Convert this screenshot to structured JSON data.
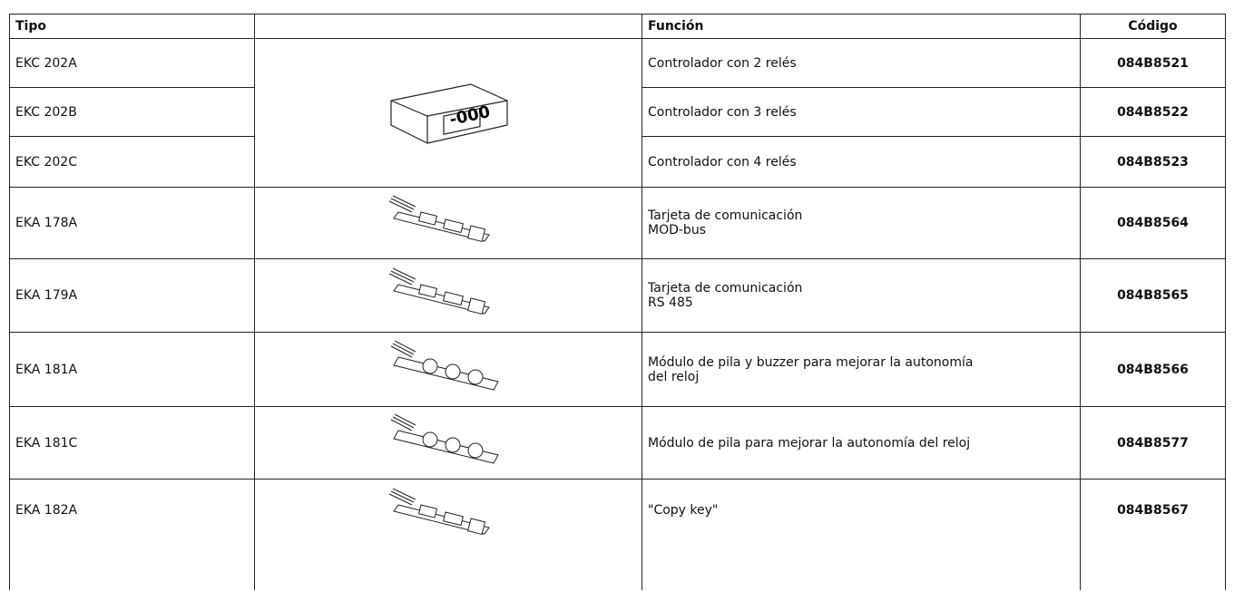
{
  "table": {
    "header": {
      "tipo": "Tipo",
      "funcion": "Función",
      "codigo": "Código"
    },
    "rows": [
      {
        "tipo": "EKC 202A",
        "funcion": [
          "Controlador con 2 relés"
        ],
        "codigo": "084B8521"
      },
      {
        "tipo": "EKC 202B",
        "funcion": [
          "Controlador con 3 relés"
        ],
        "codigo": "084B8522"
      },
      {
        "tipo": "EKC 202C",
        "funcion": [
          "Controlador con 4 relés"
        ],
        "codigo": "084B8523"
      },
      {
        "tipo": "EKA 178A",
        "funcion": [
          "Tarjeta de comunicación",
          "MOD-bus"
        ],
        "codigo": "084B8564"
      },
      {
        "tipo": "EKA 179A",
        "funcion": [
          "Tarjeta de comunicación",
          "RS 485"
        ],
        "codigo": "084B8565"
      },
      {
        "tipo": "EKA 181A",
        "funcion": [
          "Módulo de pila y buzzer para mejorar la autonomía",
          "del reloj"
        ],
        "codigo": "084B8566"
      },
      {
        "tipo": "EKA 181C",
        "funcion": [
          "Módulo de pila para mejorar la autonomía del reloj"
        ],
        "codigo": "084B8577"
      },
      {
        "tipo": "EKA 182A",
        "funcion": [
          "\"Copy key\""
        ],
        "codigo": "084B8567"
      }
    ]
  }
}
